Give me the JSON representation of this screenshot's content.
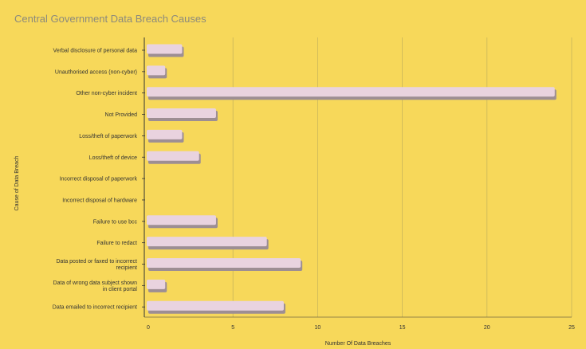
{
  "chart_data": {
    "type": "bar",
    "orientation": "horizontal",
    "title": "Central Government Data Breach Causes",
    "xlabel": "Number Of Data Breaches",
    "ylabel": "Cause of Data Breach",
    "xlim": [
      0,
      25
    ],
    "xticks": [
      0,
      5,
      10,
      15,
      20,
      25
    ],
    "grid": "vertical",
    "categories": [
      "Verbal disclosure of personal data",
      "Unauthorised access (non-cyber)",
      "Other non-cyber incident",
      "Not Provided",
      "Loss/theft of paperwork",
      "Loss/theft of device",
      "Incorrect disposal of paperwork",
      "Incorrect disposal of hardware",
      "Failure to use bcc",
      "Failure to redact",
      "Data posted or faxed to incorrect recipient",
      "Data of wrong data subject shown in client portal",
      "Data emailed to incorrect recipient"
    ],
    "values": [
      2,
      1,
      24,
      4,
      2,
      3,
      0,
      0,
      4,
      7,
      9,
      1,
      8
    ]
  },
  "colors": {
    "background": "#F7D85A",
    "bar_face": "#E9D3DF",
    "bar_shadow": "#9D8E93",
    "gridline": "#C9B65A",
    "axis": "#333333",
    "title": "#8C8A7C"
  }
}
